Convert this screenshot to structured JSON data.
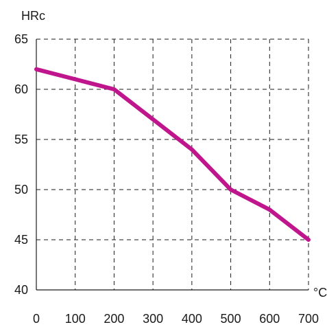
{
  "chart_data": {
    "type": "line",
    "title": "",
    "xlabel": "°C",
    "ylabel": "HRc",
    "xlim": [
      0,
      700
    ],
    "ylim": [
      40,
      65
    ],
    "xticks": [
      "0",
      "100",
      "200",
      "300",
      "400",
      "500",
      "600",
      "700"
    ],
    "yticks": [
      "40",
      "45",
      "50",
      "55",
      "60",
      "65"
    ],
    "grid": true,
    "grid_style": "dashed",
    "series": [
      {
        "color": "#c0168d",
        "x": [
          0,
          100,
          200,
          300,
          400,
          500,
          600,
          700
        ],
        "y": [
          62,
          61,
          60,
          57,
          54,
          50,
          48,
          45
        ]
      }
    ]
  }
}
